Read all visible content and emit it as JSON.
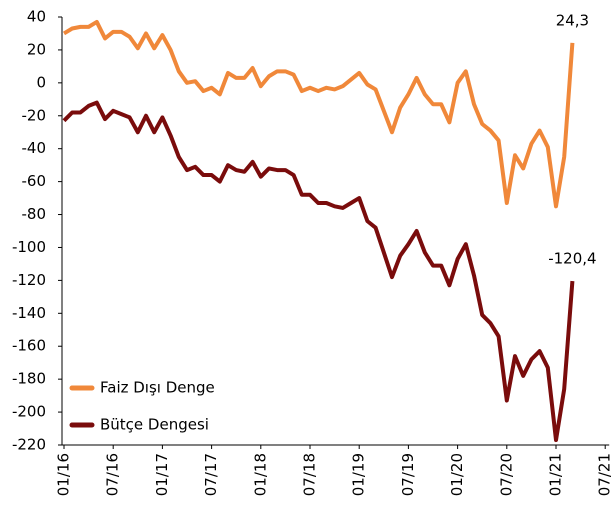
{
  "chart_data": {
    "type": "line",
    "categories": [
      "01/16",
      null,
      null,
      null,
      null,
      null,
      "07/16",
      null,
      null,
      null,
      null,
      null,
      "01/17",
      null,
      null,
      null,
      null,
      null,
      "07/17",
      null,
      null,
      null,
      null,
      null,
      "01/18",
      null,
      null,
      null,
      null,
      null,
      "07/18",
      null,
      null,
      null,
      null,
      null,
      "01/19",
      null,
      null,
      null,
      null,
      null,
      "07/19",
      null,
      null,
      null,
      null,
      null,
      "01/20",
      null,
      null,
      null,
      null,
      null,
      "07/20",
      null,
      null,
      null,
      null,
      null,
      "01/21",
      null,
      null,
      null,
      null,
      null,
      "07/21"
    ],
    "series": [
      {
        "name": "Faiz Dışı Denge",
        "color": "#f0883a",
        "values": [
          30,
          33,
          34,
          34,
          37,
          27,
          31,
          31,
          28,
          21,
          30,
          21,
          29,
          20,
          7,
          0,
          1,
          -5,
          -3,
          -7,
          6,
          3,
          3,
          9,
          -2,
          4,
          7,
          7,
          5,
          -5,
          -3,
          -5,
          -3,
          -4,
          -2,
          2,
          6,
          -1,
          -4,
          -17,
          -30,
          -15,
          -7,
          3,
          -7,
          -13,
          -13,
          -24,
          0,
          7,
          -13,
          -25,
          -29,
          -35,
          -73,
          -44,
          -52,
          -37,
          -29,
          -39,
          -75,
          -45,
          24.3,
          null,
          null,
          null,
          null
        ],
        "value_labels": [
          null,
          null,
          null,
          null,
          null,
          null,
          null,
          null,
          null,
          null,
          null,
          null,
          null,
          null,
          null,
          null,
          null,
          null,
          null,
          null,
          null,
          null,
          null,
          null,
          null,
          null,
          null,
          null,
          null,
          null,
          null,
          null,
          null,
          null,
          null,
          null,
          null,
          null,
          null,
          null,
          null,
          null,
          null,
          null,
          null,
          null,
          null,
          null,
          null,
          null,
          null,
          null,
          null,
          null,
          null,
          null,
          null,
          null,
          null,
          null,
          null,
          null,
          "24,3",
          null,
          null,
          null,
          null
        ]
      },
      {
        "name": "Bütçe Dengesi",
        "color": "#7a0c0c",
        "values": [
          -23,
          -18,
          -18,
          -14,
          -12,
          -22,
          -17,
          -19,
          -21,
          -30,
          -20,
          -30,
          -21,
          -32,
          -45,
          -53,
          -51,
          -56,
          -56,
          -60,
          -50,
          -53,
          -54,
          -48,
          -57,
          -52,
          -53,
          -53,
          -56,
          -68,
          -68,
          -73,
          -73,
          -75,
          -76,
          -73,
          -70,
          -84,
          -88,
          -103,
          -118,
          -105,
          -98,
          -90,
          -103,
          -111,
          -111,
          -123,
          -107,
          -98,
          -117,
          -141,
          -146,
          -154,
          -193,
          -166,
          -178,
          -168,
          -163,
          -173,
          -217,
          -186,
          -120.4,
          null,
          null,
          null,
          null
        ],
        "value_labels": [
          null,
          null,
          null,
          null,
          null,
          null,
          null,
          null,
          null,
          null,
          null,
          null,
          null,
          null,
          null,
          null,
          null,
          null,
          null,
          null,
          null,
          null,
          null,
          null,
          null,
          null,
          null,
          null,
          null,
          null,
          null,
          null,
          null,
          null,
          null,
          null,
          null,
          null,
          null,
          null,
          null,
          null,
          null,
          null,
          null,
          null,
          null,
          null,
          null,
          null,
          null,
          null,
          null,
          null,
          null,
          null,
          null,
          null,
          null,
          null,
          null,
          null,
          "-120,4",
          null,
          null,
          null,
          null
        ]
      }
    ],
    "ylim": [
      -220,
      40
    ],
    "yticks": [
      40,
      20,
      0,
      -20,
      -40,
      -60,
      -80,
      -100,
      -120,
      -140,
      -160,
      -180,
      -200,
      -220
    ],
    "grid": false,
    "legend": "lower left"
  }
}
